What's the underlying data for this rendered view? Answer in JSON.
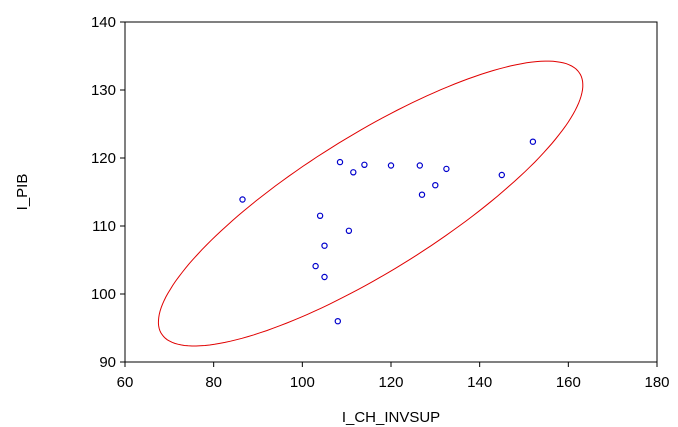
{
  "chart_data": {
    "type": "scatter",
    "title": "",
    "xlabel": "I_CH_INVSUP",
    "ylabel": "I_PIB",
    "xlim": [
      60,
      180
    ],
    "ylim": [
      90,
      140
    ],
    "xticks": [
      60,
      80,
      100,
      120,
      140,
      160,
      180
    ],
    "yticks": [
      90,
      100,
      110,
      120,
      130,
      140
    ],
    "grid": false,
    "legend": "none",
    "colors": {
      "points": "#0000cc",
      "ellipse": "#e00000",
      "frame": "#000000"
    },
    "points": [
      {
        "x": 86.5,
        "y": 113.9
      },
      {
        "x": 103.0,
        "y": 104.1
      },
      {
        "x": 104.0,
        "y": 111.5
      },
      {
        "x": 105.0,
        "y": 107.1
      },
      {
        "x": 105.0,
        "y": 102.5
      },
      {
        "x": 108.0,
        "y": 96.0
      },
      {
        "x": 108.5,
        "y": 119.4
      },
      {
        "x": 110.5,
        "y": 109.3
      },
      {
        "x": 111.5,
        "y": 117.9
      },
      {
        "x": 114.0,
        "y": 119.0
      },
      {
        "x": 120.0,
        "y": 118.9
      },
      {
        "x": 126.5,
        "y": 118.9
      },
      {
        "x": 127.0,
        "y": 114.6
      },
      {
        "x": 130.0,
        "y": 116.0
      },
      {
        "x": 132.5,
        "y": 118.4
      },
      {
        "x": 145.0,
        "y": 117.5
      },
      {
        "x": 152.0,
        "y": 122.4
      }
    ],
    "confidence_ellipse": {
      "center": [
        115.4,
        113.3
      ],
      "semi_axes": [
        51.1,
        10.9
      ],
      "rotation_deg": 21.0
    }
  }
}
